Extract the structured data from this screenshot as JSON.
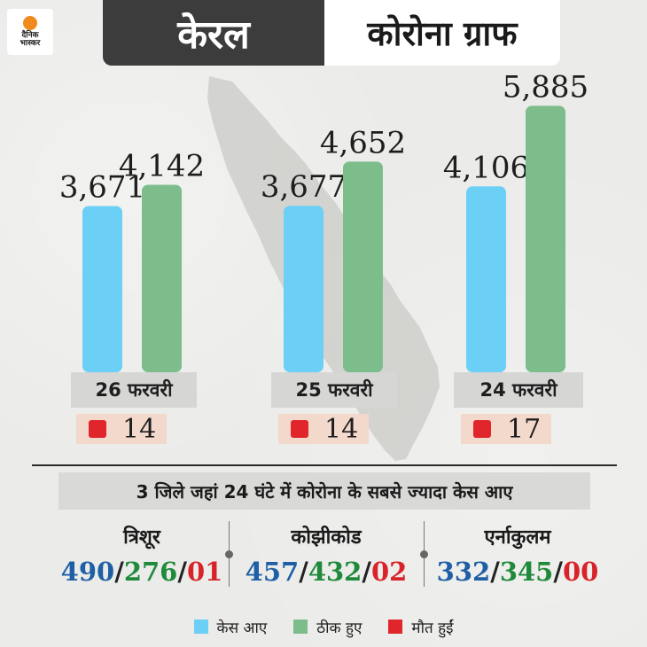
{
  "logo": {
    "line1": "दैनिक",
    "line2": "भास्कर"
  },
  "title": {
    "left": "केरल",
    "right": "कोरोना ग्राफ"
  },
  "colors": {
    "cases": "#6ccff5",
    "recovered": "#7dbd8c",
    "deaths": "#e0252b"
  },
  "chart_data": {
    "type": "bar",
    "categories": [
      "26 फरवरी",
      "25 फरवरी",
      "24 फरवरी"
    ],
    "series": [
      {
        "name": "केस आए",
        "values": [
          3671,
          3677,
          4106
        ],
        "labels": [
          "3,671",
          "3,677",
          "4,106"
        ]
      },
      {
        "name": "ठीक हुए",
        "values": [
          4142,
          4652,
          5885
        ],
        "labels": [
          "4,142",
          "4,652",
          "5,885"
        ]
      }
    ],
    "deaths": [
      "14",
      "14",
      "17"
    ],
    "ylim": [
      0,
      6500
    ]
  },
  "subtitle": "3 जिले जहां 24 घंटे में कोरोना के सबसे ज्यादा केस आए",
  "districts": [
    {
      "name": "त्रिशूर",
      "cases": "490",
      "recovered": "276",
      "deaths": "01"
    },
    {
      "name": "कोझीकोड",
      "cases": "457",
      "recovered": "432",
      "deaths": "02"
    },
    {
      "name": "एर्नाकुलम",
      "cases": "332",
      "recovered": "345",
      "deaths": "00"
    }
  ],
  "legend": [
    {
      "label": "केस आए",
      "icon": "blue-square"
    },
    {
      "label": "ठीक हुए",
      "icon": "green-square"
    },
    {
      "label": "मौत हुईं",
      "icon": "red-square"
    }
  ]
}
